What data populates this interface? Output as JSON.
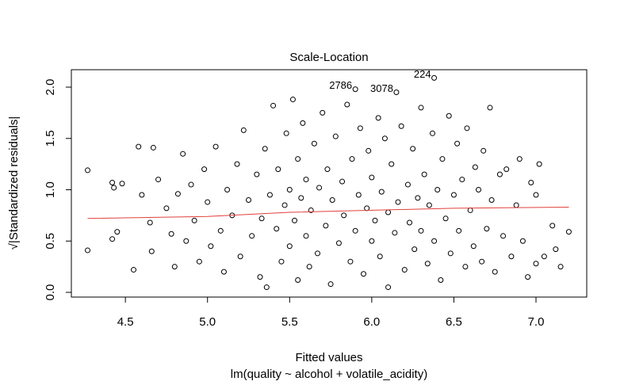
{
  "chart_data": {
    "type": "scatter",
    "title": "Scale-Location",
    "xlabel": "Fitted values",
    "subtitle": "lm(quality ~ alcohol + volatile_acidity)",
    "ylabel": "√|Standardized residuals|",
    "xlim": [
      4.171,
      7.309
    ],
    "ylim": [
      -0.046,
      2.17
    ],
    "xticks": [
      4.5,
      {
        "value": 5,
        "label": "5.0"
      },
      5.5,
      {
        "value": 6,
        "label": "6.0"
      },
      6.5,
      {
        "value": 7,
        "label": "7.0"
      }
    ],
    "yticks": [
      {
        "value": 0,
        "label": "0.0"
      },
      0.5,
      {
        "value": 1,
        "label": "1.0"
      },
      1.5,
      {
        "value": 2,
        "label": "2.0"
      }
    ],
    "color": "#000000",
    "x": [
      4.27,
      4.27,
      4.42,
      4.43,
      4.45,
      4.42,
      4.48,
      4.55,
      4.58,
      4.6,
      4.65,
      4.67,
      4.66,
      4.7,
      4.75,
      4.78,
      4.8,
      4.82,
      4.85,
      4.87,
      4.9,
      4.92,
      4.95,
      4.98,
      5.0,
      5.02,
      5.05,
      5.08,
      5.1,
      5.12,
      5.15,
      5.18,
      5.2,
      5.22,
      5.25,
      5.27,
      5.3,
      5.32,
      5.33,
      5.35,
      5.36,
      5.38,
      5.4,
      5.42,
      5.43,
      5.45,
      5.47,
      5.48,
      5.5,
      5.5,
      5.52,
      5.53,
      5.55,
      5.55,
      5.57,
      5.58,
      5.6,
      5.6,
      5.62,
      5.63,
      5.65,
      5.67,
      5.68,
      5.7,
      5.72,
      5.73,
      5.75,
      5.76,
      5.78,
      5.8,
      5.82,
      5.83,
      5.85,
      5.87,
      5.88,
      5.9,
      5.9,
      5.92,
      5.93,
      5.95,
      5.97,
      5.98,
      6.0,
      6.0,
      6.02,
      6.04,
      6.05,
      6.06,
      6.08,
      6.1,
      6.1,
      6.12,
      6.14,
      6.15,
      6.16,
      6.18,
      6.2,
      6.22,
      6.23,
      6.25,
      6.26,
      6.28,
      6.3,
      6.3,
      6.32,
      6.34,
      6.35,
      6.37,
      6.38,
      6.38,
      6.4,
      6.42,
      6.43,
      6.45,
      6.47,
      6.48,
      6.5,
      6.52,
      6.53,
      6.55,
      6.57,
      6.58,
      6.6,
      6.62,
      6.63,
      6.65,
      6.67,
      6.68,
      6.7,
      6.72,
      6.73,
      6.75,
      6.78,
      6.8,
      6.82,
      6.85,
      6.88,
      6.9,
      6.92,
      6.95,
      6.97,
      7.0,
      7.0,
      7.02,
      7.05,
      7.1,
      7.12,
      7.15,
      7.2
    ],
    "y": [
      1.19,
      0.41,
      1.07,
      1.02,
      0.59,
      0.52,
      1.06,
      0.22,
      1.42,
      0.95,
      0.68,
      1.41,
      0.4,
      1.1,
      0.82,
      0.57,
      0.25,
      0.96,
      1.35,
      0.5,
      1.05,
      0.7,
      0.3,
      1.2,
      0.88,
      0.45,
      1.42,
      0.6,
      0.2,
      1.0,
      0.75,
      1.25,
      0.35,
      1.58,
      0.9,
      0.55,
      1.15,
      0.15,
      0.72,
      1.4,
      0.05,
      0.95,
      1.82,
      0.62,
      1.2,
      0.3,
      0.85,
      1.55,
      1.0,
      0.45,
      1.88,
      0.7,
      1.3,
      0.12,
      0.92,
      1.65,
      0.55,
      1.1,
      0.25,
      0.8,
      1.45,
      0.38,
      1.02,
      1.75,
      0.65,
      1.2,
      0.08,
      0.9,
      1.52,
      0.48,
      1.08,
      0.75,
      1.83,
      0.3,
      1.3,
      1.98,
      0.6,
      0.95,
      1.6,
      0.18,
      0.82,
      1.38,
      0.5,
      1.12,
      0.7,
      1.7,
      0.35,
      0.98,
      1.5,
      0.05,
      0.78,
      1.25,
      0.58,
      1.95,
      0.88,
      1.62,
      0.22,
      1.05,
      0.68,
      1.4,
      0.42,
      0.92,
      1.8,
      0.6,
      1.15,
      0.28,
      0.85,
      1.55,
      2.09,
      0.5,
      1.0,
      0.12,
      1.3,
      0.72,
      1.72,
      0.38,
      0.95,
      1.45,
      0.6,
      1.1,
      0.25,
      1.6,
      0.8,
      0.45,
      1.22,
      1.0,
      0.3,
      1.38,
      0.62,
      1.8,
      0.9,
      0.2,
      1.15,
      0.55,
      1.2,
      0.35,
      0.85,
      1.3,
      0.5,
      0.15,
      1.07,
      0.28,
      0.95,
      1.25,
      0.35,
      0.65,
      0.42,
      0.25,
      0.59
    ],
    "smooth": {
      "color": "#e0403a",
      "x": [
        4.27,
        5.0,
        5.5,
        6.0,
        6.5,
        7.2
      ],
      "y": [
        0.72,
        0.74,
        0.78,
        0.8,
        0.82,
        0.83
      ]
    },
    "point_labels": [
      {
        "label": "2786",
        "x": 5.9,
        "y": 1.98
      },
      {
        "label": "3078",
        "x": 6.15,
        "y": 1.95
      },
      {
        "label": "224",
        "x": 6.38,
        "y": 2.09
      }
    ]
  }
}
